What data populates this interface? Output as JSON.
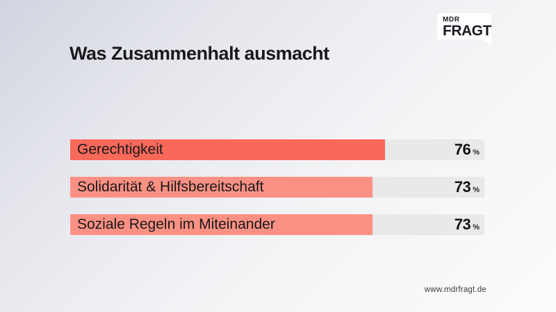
{
  "page": {
    "title": "Was Zusammenhalt ausmacht",
    "source_url": "www.mdrfragt.de"
  },
  "logo": {
    "line1": "MDR",
    "line2": "FRAGT"
  },
  "chart_data": {
    "type": "bar",
    "orientation": "horizontal",
    "title": "Was Zusammenhalt ausmacht",
    "categories": [
      "Gerechtigkeit",
      "Solidarität & Hilfsbereitschaft",
      "Soziale Regeln im Miteinander"
    ],
    "values": [
      76,
      73,
      73
    ],
    "unit": "%",
    "xlim": [
      0,
      100
    ],
    "grid": false,
    "legend": false,
    "bar_colors": [
      "#f9695a",
      "#fb9184",
      "#fb9184"
    ],
    "track_color": "#e9e9ea"
  },
  "colors": {
    "accent_primary": "#f9695a",
    "accent_secondary": "#fb9184",
    "track": "#e9e9ea",
    "text": "#1a1a1c",
    "logo_background": "#ffffff"
  }
}
